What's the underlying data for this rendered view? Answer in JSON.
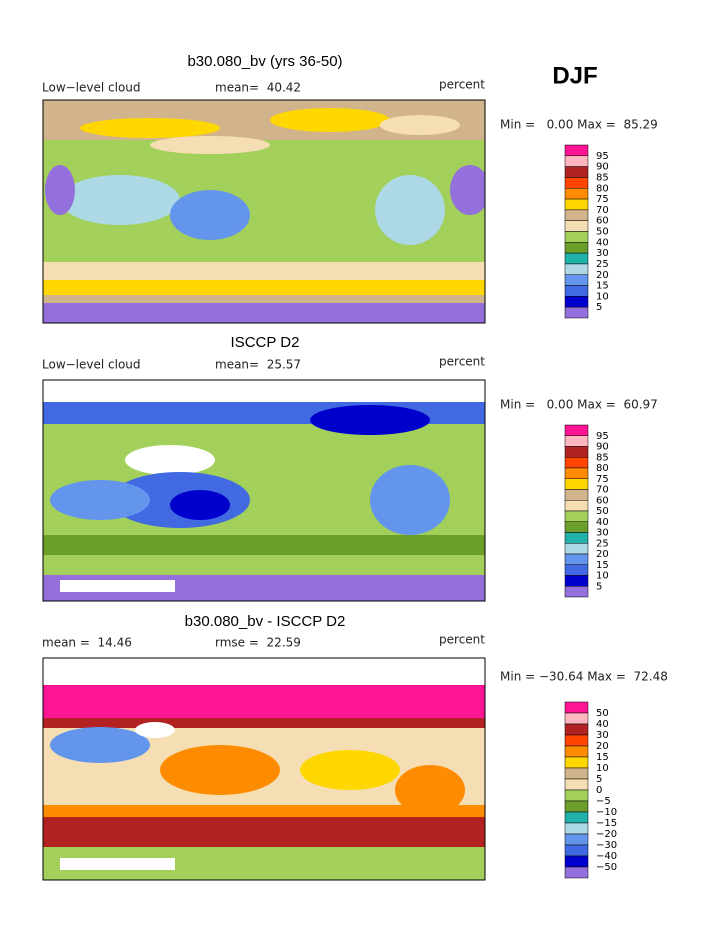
{
  "season": "DJF",
  "panels": [
    {
      "title": "b30.080_bv (yrs 36-50)",
      "left_label": "Low−level cloud",
      "center_label": "mean=  40.42",
      "right_label": "percent",
      "stats": "Min =   0.00 Max =  85.29",
      "colorbar": {
        "labels": [
          "95",
          "90",
          "85",
          "80",
          "75",
          "70",
          "60",
          "50",
          "40",
          "30",
          "25",
          "20",
          "15",
          "10",
          "5"
        ],
        "colors": [
          "#ff1493",
          "#ffb6c1",
          "#b22222",
          "#ff4500",
          "#ff8c00",
          "#ffd700",
          "#d2b48c",
          "#f5deb3",
          "#a2d05a",
          "#6b9e2a",
          "#20b2aa",
          "#add8e6",
          "#6495ed",
          "#4169e1",
          "#0000cd",
          "#9370db"
        ]
      }
    },
    {
      "title": "ISCCP D2",
      "left_label": "Low−level cloud",
      "center_label": "mean=  25.57",
      "right_label": "percent",
      "stats": "Min =   0.00 Max =  60.97",
      "colorbar": {
        "labels": [
          "95",
          "90",
          "85",
          "80",
          "75",
          "70",
          "60",
          "50",
          "40",
          "30",
          "25",
          "20",
          "15",
          "10",
          "5"
        ],
        "colors": [
          "#ff1493",
          "#ffb6c1",
          "#b22222",
          "#ff4500",
          "#ff8c00",
          "#ffd700",
          "#d2b48c",
          "#f5deb3",
          "#a2d05a",
          "#6b9e2a",
          "#20b2aa",
          "#add8e6",
          "#6495ed",
          "#4169e1",
          "#0000cd",
          "#9370db"
        ]
      }
    },
    {
      "title": "b30.080_bv - ISCCP D2",
      "left_label": "mean =  14.46",
      "center_label": "rmse =  22.59",
      "right_label": "percent",
      "stats": "Min = −30.64 Max =  72.48",
      "colorbar": {
        "labels": [
          "50",
          "40",
          "30",
          "20",
          "15",
          "10",
          "5",
          "0",
          "−5",
          "−10",
          "−15",
          "−20",
          "−30",
          "−40",
          "−50"
        ],
        "colors": [
          "#ff1493",
          "#ffb6c1",
          "#b22222",
          "#ff4500",
          "#ff8c00",
          "#ffd700",
          "#d2b48c",
          "#f5deb3",
          "#a2d05a",
          "#6b9e2a",
          "#20b2aa",
          "#add8e6",
          "#6495ed",
          "#4169e1",
          "#0000cd",
          "#9370db"
        ]
      }
    }
  ]
}
